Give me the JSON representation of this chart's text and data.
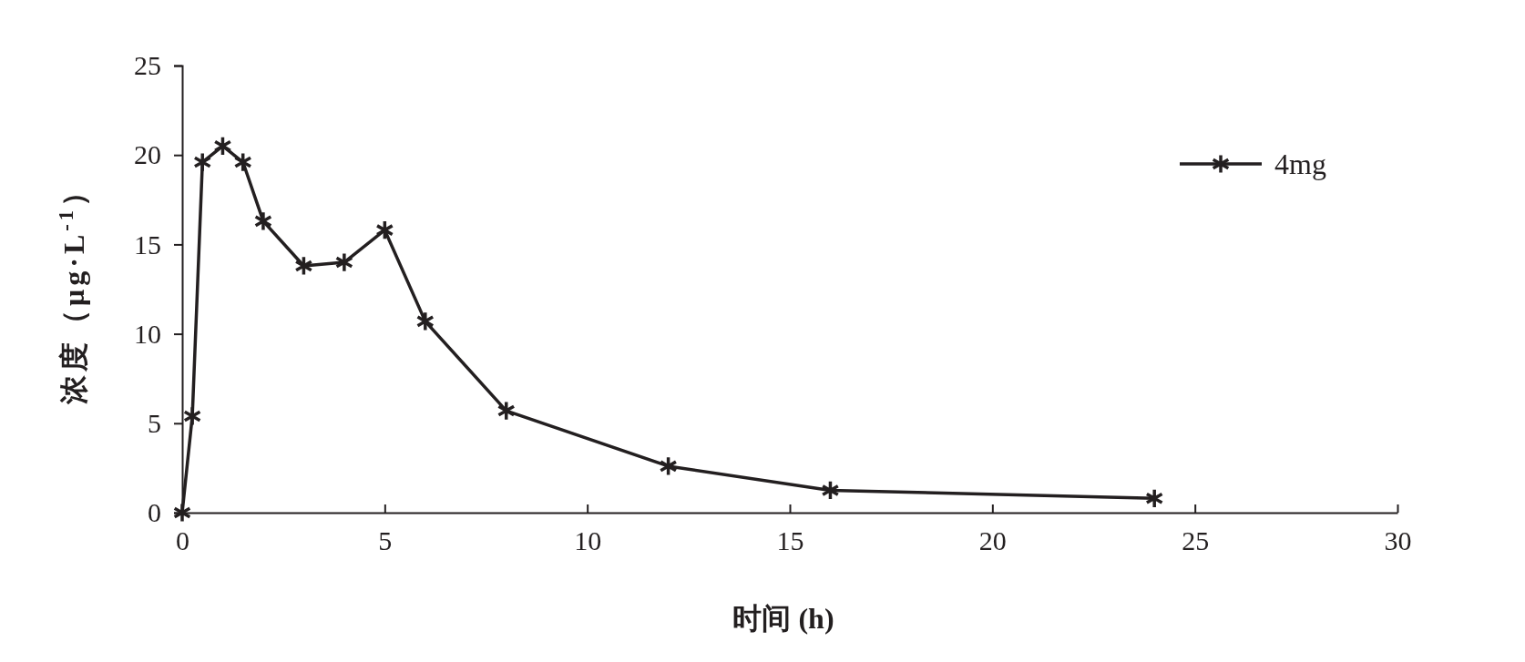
{
  "chart_data": {
    "type": "line",
    "xlabel": "时间 (h)",
    "ylabel": "浓度（μg·L$^{-1}$）",
    "xlim": [
      0,
      30
    ],
    "xticks": [
      0,
      5,
      10,
      15,
      20,
      25,
      30
    ],
    "ylim": [
      0,
      25
    ],
    "yticks": [
      0,
      5,
      10,
      15,
      20,
      25
    ],
    "x": [
      0,
      0.25,
      0.5,
      1,
      1.5,
      2,
      3,
      4,
      5,
      6,
      8,
      12,
      16,
      24
    ],
    "series": [
      {
        "name": "4mg",
        "color": "#231f20",
        "values": [
          0,
          5.4,
          19.6,
          20.5,
          19.6,
          16.3,
          13.8,
          14.0,
          15.8,
          10.7,
          5.7,
          2.6,
          1.25,
          0.8
        ]
      }
    ],
    "marker": "cross",
    "line_style": "solid",
    "grid": false,
    "legend": "top right"
  }
}
